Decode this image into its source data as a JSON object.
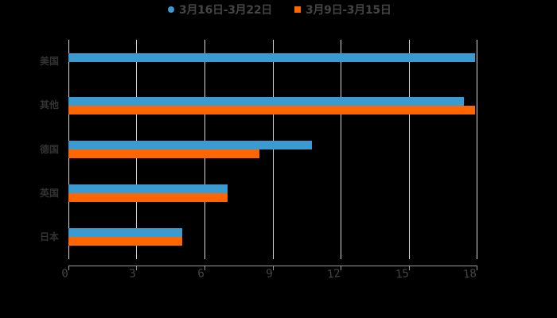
{
  "legend": {
    "items": [
      {
        "label": "3月16日-3月22日",
        "color": "#3a9ad2",
        "marker": "circle-icon"
      },
      {
        "label": "3月9日-3月15日",
        "color": "#ff6600",
        "marker": "square-icon"
      }
    ]
  },
  "chart_data": {
    "type": "bar",
    "orientation": "horizontal",
    "title": "",
    "xlabel": "",
    "ylabel": "",
    "categories": [
      "美国",
      "其他",
      "德国",
      "英国",
      "日本"
    ],
    "series": [
      {
        "name": "3月16日-3月22日",
        "color": "#3a9ad2",
        "values": [
          17.9,
          17.4,
          10.7,
          7.0,
          5.0
        ]
      },
      {
        "name": "3月9日-3月15日",
        "color": "#ff6600",
        "values": [
          0,
          17.9,
          8.4,
          7.0,
          5.0
        ]
      }
    ],
    "xlim": [
      0,
      18
    ],
    "x_ticks": [
      "0",
      "3",
      "6",
      "9",
      "12",
      "15",
      "18"
    ],
    "grid": {
      "vertical": true,
      "horizontal": false
    },
    "legend_position": "top"
  }
}
